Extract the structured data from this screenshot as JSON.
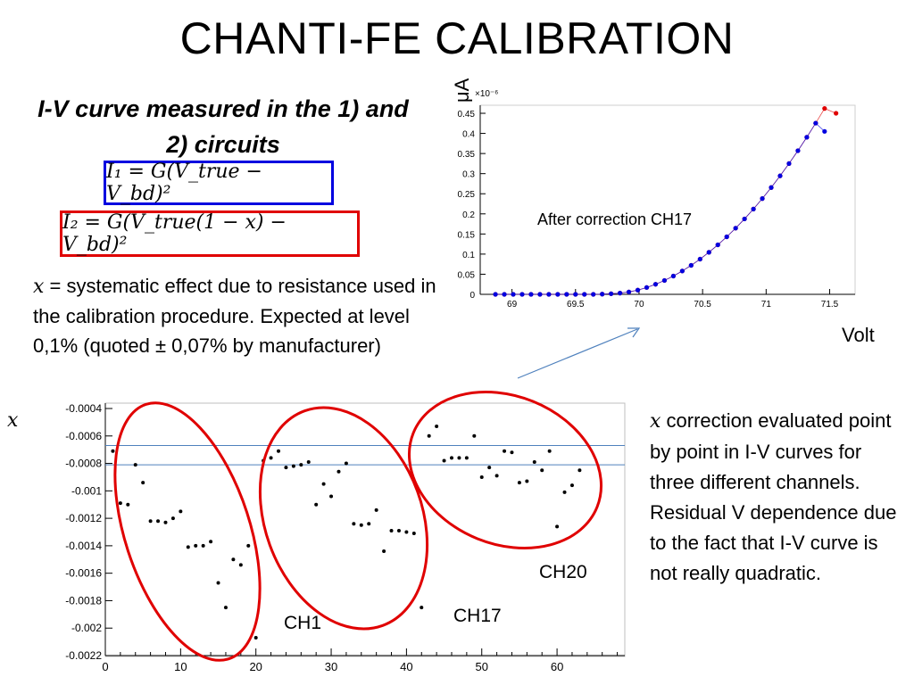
{
  "slide": {
    "title": "CHANTI-FE CALIBRATION",
    "subtitle": "I-V curve measured in the 1) and 2) circuits",
    "eq1": "I₁ = G(V_true − V_bd)²",
    "eq2": "I₂ = G(V_true(1 − x) − V_bd)²",
    "description_var": "x",
    "description": " = systematic effect due to resistance used in the calibration procedure. Expected at level 0,1% (quoted  ± 0,07% by manufacturer)",
    "right_var": "x",
    "right_text": " correction evaluated point by point in I-V curves for three different channels. Residual V dependence due to the fact  that I-V curve is not  really quadratic.",
    "colors": {
      "blue_box": "#0000e0",
      "red_box": "#e00000",
      "arrow": "#4f81bd"
    }
  },
  "chart_data": [
    {
      "type": "scatter",
      "ylabel": "μA",
      "xlabel": "Volt",
      "annotation": "After correction CH17",
      "y_multiplier": "×10⁻⁶",
      "xlim": [
        68.75,
        71.7
      ],
      "ylim": [
        0,
        0.47
      ],
      "xticks": [
        69,
        69.5,
        70,
        70.5,
        71,
        71.5
      ],
      "yticks": [
        0,
        0.05,
        0.1,
        0.15,
        0.2,
        0.25,
        0.3,
        0.35,
        0.4,
        0.45
      ],
      "series": [
        {
          "color": "#e00000",
          "x": [
            68.87,
            68.94,
            69.01,
            69.08,
            69.15,
            69.22,
            69.29,
            69.36,
            69.43,
            69.5,
            69.57,
            69.64,
            69.71,
            69.78,
            69.85,
            69.92,
            69.99,
            70.06,
            70.13,
            70.2,
            70.27,
            70.34,
            70.41,
            70.48,
            70.55,
            70.62,
            70.69,
            70.76,
            70.83,
            70.9,
            70.97,
            71.04,
            71.11,
            71.18,
            71.25,
            71.32,
            71.39,
            71.46,
            71.55
          ],
          "values": [
            0,
            0,
            0,
            0,
            0,
            0,
            0,
            0,
            0,
            0,
            0,
            0,
            0.0005,
            0.0015,
            0.003,
            0.006,
            0.0105,
            0.017,
            0.025,
            0.0345,
            0.0455,
            0.058,
            0.072,
            0.0875,
            0.1045,
            0.123,
            0.143,
            0.1645,
            0.1875,
            0.212,
            0.238,
            0.2655,
            0.2945,
            0.325,
            0.357,
            0.3905,
            0.4255,
            0.462,
            0.45
          ]
        },
        {
          "color": "#0000e0",
          "x": [
            68.87,
            68.94,
            69.01,
            69.08,
            69.15,
            69.22,
            69.29,
            69.36,
            69.43,
            69.5,
            69.57,
            69.64,
            69.71,
            69.78,
            69.85,
            69.92,
            69.99,
            70.06,
            70.13,
            70.2,
            70.27,
            70.34,
            70.41,
            70.48,
            70.55,
            70.62,
            70.69,
            70.76,
            70.83,
            70.9,
            70.97,
            71.04,
            71.11,
            71.18,
            71.25,
            71.32,
            71.39,
            71.46
          ],
          "values": [
            0,
            0,
            0,
            0,
            0,
            0,
            0,
            0,
            0,
            0,
            0,
            0,
            0.0005,
            0.0015,
            0.003,
            0.006,
            0.0105,
            0.017,
            0.025,
            0.0345,
            0.0455,
            0.058,
            0.072,
            0.0875,
            0.1045,
            0.123,
            0.143,
            0.1645,
            0.1875,
            0.212,
            0.238,
            0.2655,
            0.2945,
            0.325,
            0.357,
            0.3905,
            0.4255,
            0.405
          ]
        }
      ]
    },
    {
      "type": "scatter",
      "ylabel": "x",
      "xlim": [
        0,
        69
      ],
      "ylim": [
        -0.0022,
        -0.0004
      ],
      "xticks": [
        0,
        10,
        20,
        30,
        40,
        50,
        60
      ],
      "yticks": [
        -0.0004,
        -0.0006,
        -0.0008,
        -0.001,
        -0.0012,
        -0.0014,
        -0.0016,
        -0.0018,
        -0.002,
        -0.0022
      ],
      "hlines": [
        -0.00067,
        -0.00081
      ],
      "groups": [
        {
          "label": "CH1",
          "x_range": [
            0,
            21
          ]
        },
        {
          "label": "CH17",
          "x_range": [
            20,
            43
          ]
        },
        {
          "label": "CH20",
          "x_range": [
            42,
            64
          ]
        }
      ],
      "x": [
        1,
        2,
        3,
        4,
        5,
        6,
        7,
        8,
        9,
        10,
        11,
        12,
        13,
        14,
        15,
        16,
        17,
        18,
        19,
        20,
        21,
        22,
        23,
        24,
        25,
        26,
        27,
        28,
        29,
        30,
        31,
        32,
        33,
        34,
        35,
        36,
        37,
        38,
        39,
        40,
        41,
        42,
        43,
        44,
        45,
        46,
        47,
        48,
        49,
        50,
        51,
        52,
        53,
        54,
        55,
        56,
        57,
        58,
        59,
        60,
        61,
        62,
        63
      ],
      "values": [
        -0.00071,
        -0.00109,
        -0.0011,
        -0.00081,
        -0.00094,
        -0.00122,
        -0.00122,
        -0.00123,
        -0.0012,
        -0.00115,
        -0.00141,
        -0.0014,
        -0.0014,
        -0.00137,
        -0.00167,
        -0.00185,
        -0.0015,
        -0.00154,
        -0.0014,
        -0.00207,
        -0.00078,
        -0.00076,
        -0.00071,
        -0.00083,
        -0.00082,
        -0.00081,
        -0.00079,
        -0.0011,
        -0.00095,
        -0.00104,
        -0.00086,
        -0.0008,
        -0.00124,
        -0.00125,
        -0.00124,
        -0.00114,
        -0.00144,
        -0.00129,
        -0.00129,
        -0.0013,
        -0.00131,
        -0.00185,
        -0.0006,
        -0.00053,
        -0.00078,
        -0.00076,
        -0.00076,
        -0.00076,
        -0.0006,
        -0.0009,
        -0.00083,
        -0.00089,
        -0.00071,
        -0.00072,
        -0.00094,
        -0.00093,
        -0.00079,
        -0.00085,
        -0.00071,
        -0.00126,
        -0.00101,
        -0.00096,
        -0.00085
      ]
    }
  ]
}
